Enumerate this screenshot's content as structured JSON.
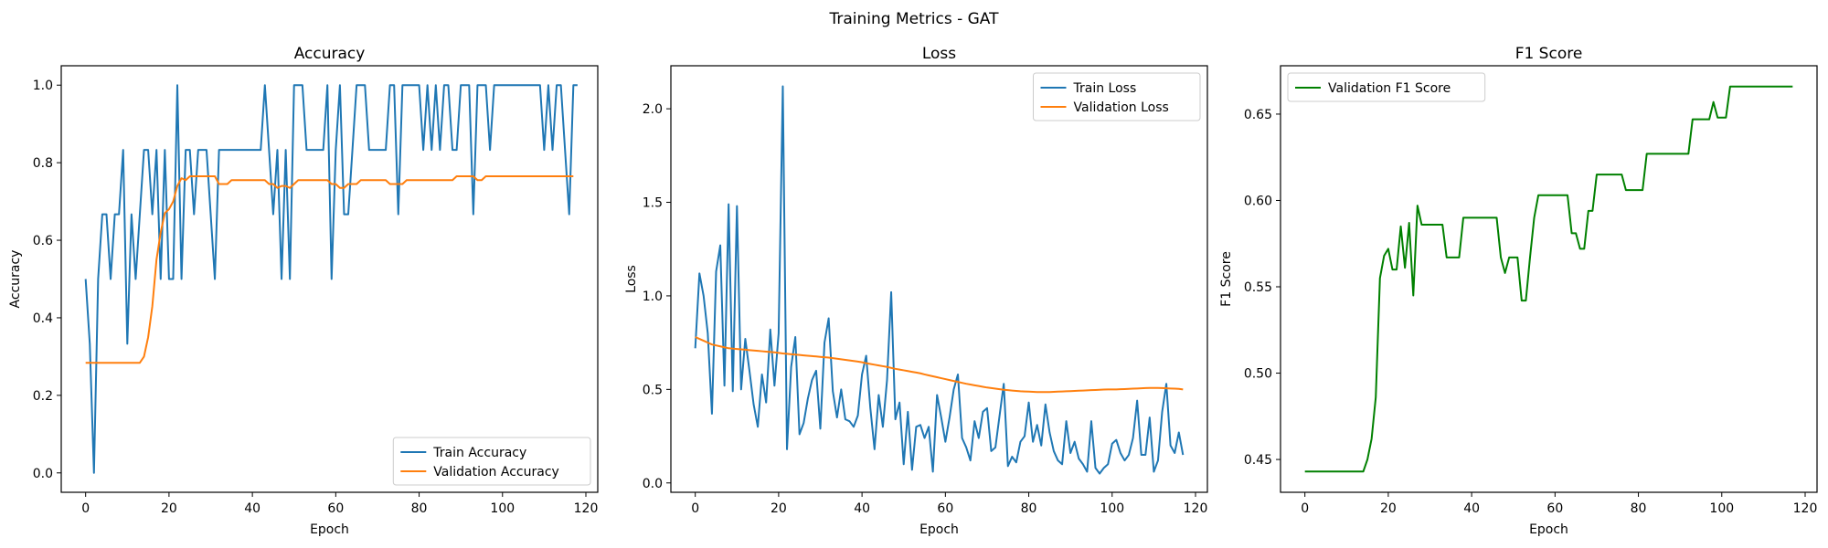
{
  "figure": {
    "suptitle": "Training Metrics - GAT"
  },
  "chart_data": [
    {
      "type": "line",
      "title": "Accuracy",
      "xlabel": "Epoch",
      "ylabel": "Accuracy",
      "xlim": [
        -5.85,
        122.85
      ],
      "ylim": [
        -0.05,
        1.05
      ],
      "xticks": [
        0,
        20,
        40,
        60,
        80,
        100,
        120
      ],
      "yticks": [
        0.0,
        0.2,
        0.4,
        0.6,
        0.8,
        1.0
      ],
      "xtick_labels": [
        "0",
        "20",
        "40",
        "60",
        "80",
        "100",
        "120"
      ],
      "ytick_labels": [
        "0.0",
        "0.2",
        "0.4",
        "0.6",
        "0.8",
        "1.0"
      ],
      "legend_loc": "lower-right",
      "series": [
        {
          "name": "Train Accuracy",
          "color": "#1f77b4",
          "x_start": 0,
          "values": [
            0.5,
            0.333,
            0.0,
            0.5,
            0.667,
            0.667,
            0.5,
            0.667,
            0.667,
            0.833,
            0.333,
            0.667,
            0.5,
            0.667,
            0.833,
            0.833,
            0.667,
            0.833,
            0.5,
            0.833,
            0.5,
            0.5,
            1.0,
            0.5,
            0.833,
            0.833,
            0.667,
            0.833,
            0.833,
            0.833,
            0.667,
            0.5,
            0.833,
            0.833,
            0.833,
            0.833,
            0.833,
            0.833,
            0.833,
            0.833,
            0.833,
            0.833,
            0.833,
            1.0,
            0.833,
            0.667,
            0.833,
            0.5,
            0.833,
            0.5,
            1.0,
            1.0,
            1.0,
            0.833,
            0.833,
            0.833,
            0.833,
            0.833,
            1.0,
            0.5,
            0.833,
            1.0,
            0.667,
            0.667,
            0.833,
            1.0,
            1.0,
            1.0,
            0.833,
            0.833,
            0.833,
            0.833,
            0.833,
            1.0,
            1.0,
            0.667,
            1.0,
            1.0,
            1.0,
            1.0,
            1.0,
            0.833,
            1.0,
            0.833,
            1.0,
            0.833,
            1.0,
            1.0,
            0.833,
            0.833,
            1.0,
            1.0,
            1.0,
            0.667,
            1.0,
            1.0,
            1.0,
            0.833,
            1.0,
            1.0,
            1.0,
            1.0,
            1.0,
            1.0,
            1.0,
            1.0,
            1.0,
            1.0,
            1.0,
            1.0,
            0.833,
            1.0,
            0.833,
            1.0,
            1.0,
            0.833,
            0.667,
            1.0,
            1.0
          ]
        },
        {
          "name": "Validation Accuracy",
          "color": "#ff7f0e",
          "x_start": 0,
          "values": [
            0.284,
            0.284,
            0.284,
            0.284,
            0.284,
            0.284,
            0.284,
            0.284,
            0.284,
            0.284,
            0.284,
            0.284,
            0.284,
            0.284,
            0.3,
            0.35,
            0.43,
            0.55,
            0.62,
            0.67,
            0.68,
            0.7,
            0.74,
            0.76,
            0.755,
            0.765,
            0.765,
            0.765,
            0.765,
            0.765,
            0.765,
            0.765,
            0.745,
            0.745,
            0.745,
            0.755,
            0.755,
            0.755,
            0.755,
            0.755,
            0.755,
            0.755,
            0.755,
            0.755,
            0.745,
            0.745,
            0.735,
            0.74,
            0.74,
            0.735,
            0.745,
            0.755,
            0.755,
            0.755,
            0.755,
            0.755,
            0.755,
            0.755,
            0.755,
            0.745,
            0.745,
            0.735,
            0.735,
            0.745,
            0.745,
            0.745,
            0.755,
            0.755,
            0.755,
            0.755,
            0.755,
            0.755,
            0.755,
            0.745,
            0.745,
            0.745,
            0.745,
            0.755,
            0.755,
            0.755,
            0.755,
            0.755,
            0.755,
            0.755,
            0.755,
            0.755,
            0.755,
            0.755,
            0.755,
            0.765,
            0.765,
            0.765,
            0.765,
            0.765,
            0.755,
            0.755,
            0.765,
            0.765,
            0.765,
            0.765,
            0.765,
            0.765,
            0.765,
            0.765,
            0.765,
            0.765,
            0.765,
            0.765,
            0.765,
            0.765,
            0.765,
            0.765,
            0.765,
            0.765,
            0.765,
            0.765,
            0.765,
            0.765
          ]
        }
      ]
    },
    {
      "type": "line",
      "title": "Loss",
      "xlabel": "Epoch",
      "ylabel": "Loss",
      "xlim": [
        -5.85,
        122.85
      ],
      "ylim": [
        -0.05,
        2.23
      ],
      "xticks": [
        0,
        20,
        40,
        60,
        80,
        100,
        120
      ],
      "yticks": [
        0.0,
        0.5,
        1.0,
        1.5,
        2.0
      ],
      "xtick_labels": [
        "0",
        "20",
        "40",
        "60",
        "80",
        "100",
        "120"
      ],
      "ytick_labels": [
        "0.0",
        "0.5",
        "1.0",
        "1.5",
        "2.0"
      ],
      "legend_loc": "top-right",
      "series": [
        {
          "name": "Train Loss",
          "color": "#1f77b4",
          "x_start": 0,
          "values": [
            0.72,
            1.12,
            1.0,
            0.8,
            0.37,
            1.13,
            1.27,
            0.52,
            1.49,
            0.49,
            1.48,
            0.5,
            0.77,
            0.6,
            0.42,
            0.3,
            0.58,
            0.43,
            0.82,
            0.52,
            0.8,
            2.12,
            0.18,
            0.62,
            0.78,
            0.26,
            0.32,
            0.45,
            0.55,
            0.6,
            0.29,
            0.75,
            0.88,
            0.49,
            0.35,
            0.5,
            0.34,
            0.33,
            0.3,
            0.36,
            0.58,
            0.68,
            0.4,
            0.18,
            0.47,
            0.3,
            0.55,
            1.02,
            0.34,
            0.43,
            0.1,
            0.38,
            0.07,
            0.3,
            0.31,
            0.24,
            0.3,
            0.06,
            0.47,
            0.35,
            0.22,
            0.35,
            0.5,
            0.58,
            0.24,
            0.19,
            0.12,
            0.33,
            0.24,
            0.38,
            0.4,
            0.17,
            0.19,
            0.36,
            0.53,
            0.09,
            0.14,
            0.11,
            0.22,
            0.25,
            0.43,
            0.22,
            0.31,
            0.2,
            0.42,
            0.27,
            0.17,
            0.12,
            0.1,
            0.33,
            0.16,
            0.22,
            0.13,
            0.1,
            0.06,
            0.33,
            0.08,
            0.05,
            0.08,
            0.1,
            0.21,
            0.23,
            0.16,
            0.12,
            0.15,
            0.24,
            0.44,
            0.15,
            0.15,
            0.35,
            0.06,
            0.12,
            0.38,
            0.53,
            0.2,
            0.16,
            0.27,
            0.15
          ]
        },
        {
          "name": "Validation Loss",
          "color": "#ff7f0e",
          "x_start": 0,
          "values": [
            0.78,
            0.77,
            0.76,
            0.75,
            0.74,
            0.735,
            0.73,
            0.725,
            0.72,
            0.718,
            0.716,
            0.714,
            0.712,
            0.71,
            0.708,
            0.706,
            0.704,
            0.702,
            0.7,
            0.698,
            0.695,
            0.692,
            0.69,
            0.688,
            0.686,
            0.684,
            0.682,
            0.68,
            0.678,
            0.676,
            0.674,
            0.672,
            0.67,
            0.667,
            0.664,
            0.661,
            0.658,
            0.655,
            0.652,
            0.649,
            0.645,
            0.64,
            0.636,
            0.632,
            0.628,
            0.624,
            0.62,
            0.615,
            0.61,
            0.606,
            0.602,
            0.598,
            0.594,
            0.59,
            0.586,
            0.58,
            0.575,
            0.57,
            0.565,
            0.56,
            0.555,
            0.55,
            0.545,
            0.54,
            0.535,
            0.53,
            0.526,
            0.522,
            0.518,
            0.514,
            0.51,
            0.507,
            0.504,
            0.501,
            0.498,
            0.496,
            0.494,
            0.492,
            0.49,
            0.489,
            0.488,
            0.487,
            0.486,
            0.486,
            0.486,
            0.486,
            0.487,
            0.488,
            0.489,
            0.49,
            0.491,
            0.492,
            0.493,
            0.494,
            0.495,
            0.496,
            0.497,
            0.498,
            0.499,
            0.5,
            0.5,
            0.5,
            0.501,
            0.502,
            0.503,
            0.504,
            0.505,
            0.506,
            0.507,
            0.508,
            0.508,
            0.508,
            0.507,
            0.506,
            0.505,
            0.504,
            0.503,
            0.5
          ]
        }
      ]
    },
    {
      "type": "line",
      "title": "F1 Score",
      "xlabel": "Epoch",
      "ylabel": "F1 Score",
      "xlim": [
        -5.85,
        122.85
      ],
      "ylim": [
        0.431,
        0.678
      ],
      "xticks": [
        0,
        20,
        40,
        60,
        80,
        100,
        120
      ],
      "yticks": [
        0.45,
        0.5,
        0.55,
        0.6,
        0.65
      ],
      "xtick_labels": [
        "0",
        "20",
        "40",
        "60",
        "80",
        "100",
        "120"
      ],
      "ytick_labels": [
        "0.45",
        "0.50",
        "0.55",
        "0.60",
        "0.65"
      ],
      "legend_loc": "top-left",
      "series": [
        {
          "name": "Validation F1 Score",
          "color": "#008000",
          "x_start": 0,
          "values": [
            0.443,
            0.443,
            0.443,
            0.443,
            0.443,
            0.443,
            0.443,
            0.443,
            0.443,
            0.443,
            0.443,
            0.443,
            0.443,
            0.443,
            0.443,
            0.45,
            0.462,
            0.486,
            0.555,
            0.568,
            0.572,
            0.56,
            0.56,
            0.585,
            0.561,
            0.587,
            0.545,
            0.597,
            0.586,
            0.586,
            0.586,
            0.586,
            0.586,
            0.586,
            0.567,
            0.567,
            0.567,
            0.567,
            0.59,
            0.59,
            0.59,
            0.59,
            0.59,
            0.59,
            0.59,
            0.59,
            0.59,
            0.567,
            0.558,
            0.567,
            0.567,
            0.567,
            0.542,
            0.542,
            0.567,
            0.59,
            0.603,
            0.603,
            0.603,
            0.603,
            0.603,
            0.603,
            0.603,
            0.603,
            0.581,
            0.581,
            0.572,
            0.572,
            0.594,
            0.594,
            0.615,
            0.615,
            0.615,
            0.615,
            0.615,
            0.615,
            0.615,
            0.606,
            0.606,
            0.606,
            0.606,
            0.606,
            0.627,
            0.627,
            0.627,
            0.627,
            0.627,
            0.627,
            0.627,
            0.627,
            0.627,
            0.627,
            0.627,
            0.647,
            0.647,
            0.647,
            0.647,
            0.647,
            0.657,
            0.648,
            0.648,
            0.648,
            0.666,
            0.666,
            0.666,
            0.666,
            0.666,
            0.666,
            0.666,
            0.666,
            0.666,
            0.666,
            0.666,
            0.666,
            0.666,
            0.666,
            0.666,
            0.666
          ]
        }
      ]
    }
  ]
}
